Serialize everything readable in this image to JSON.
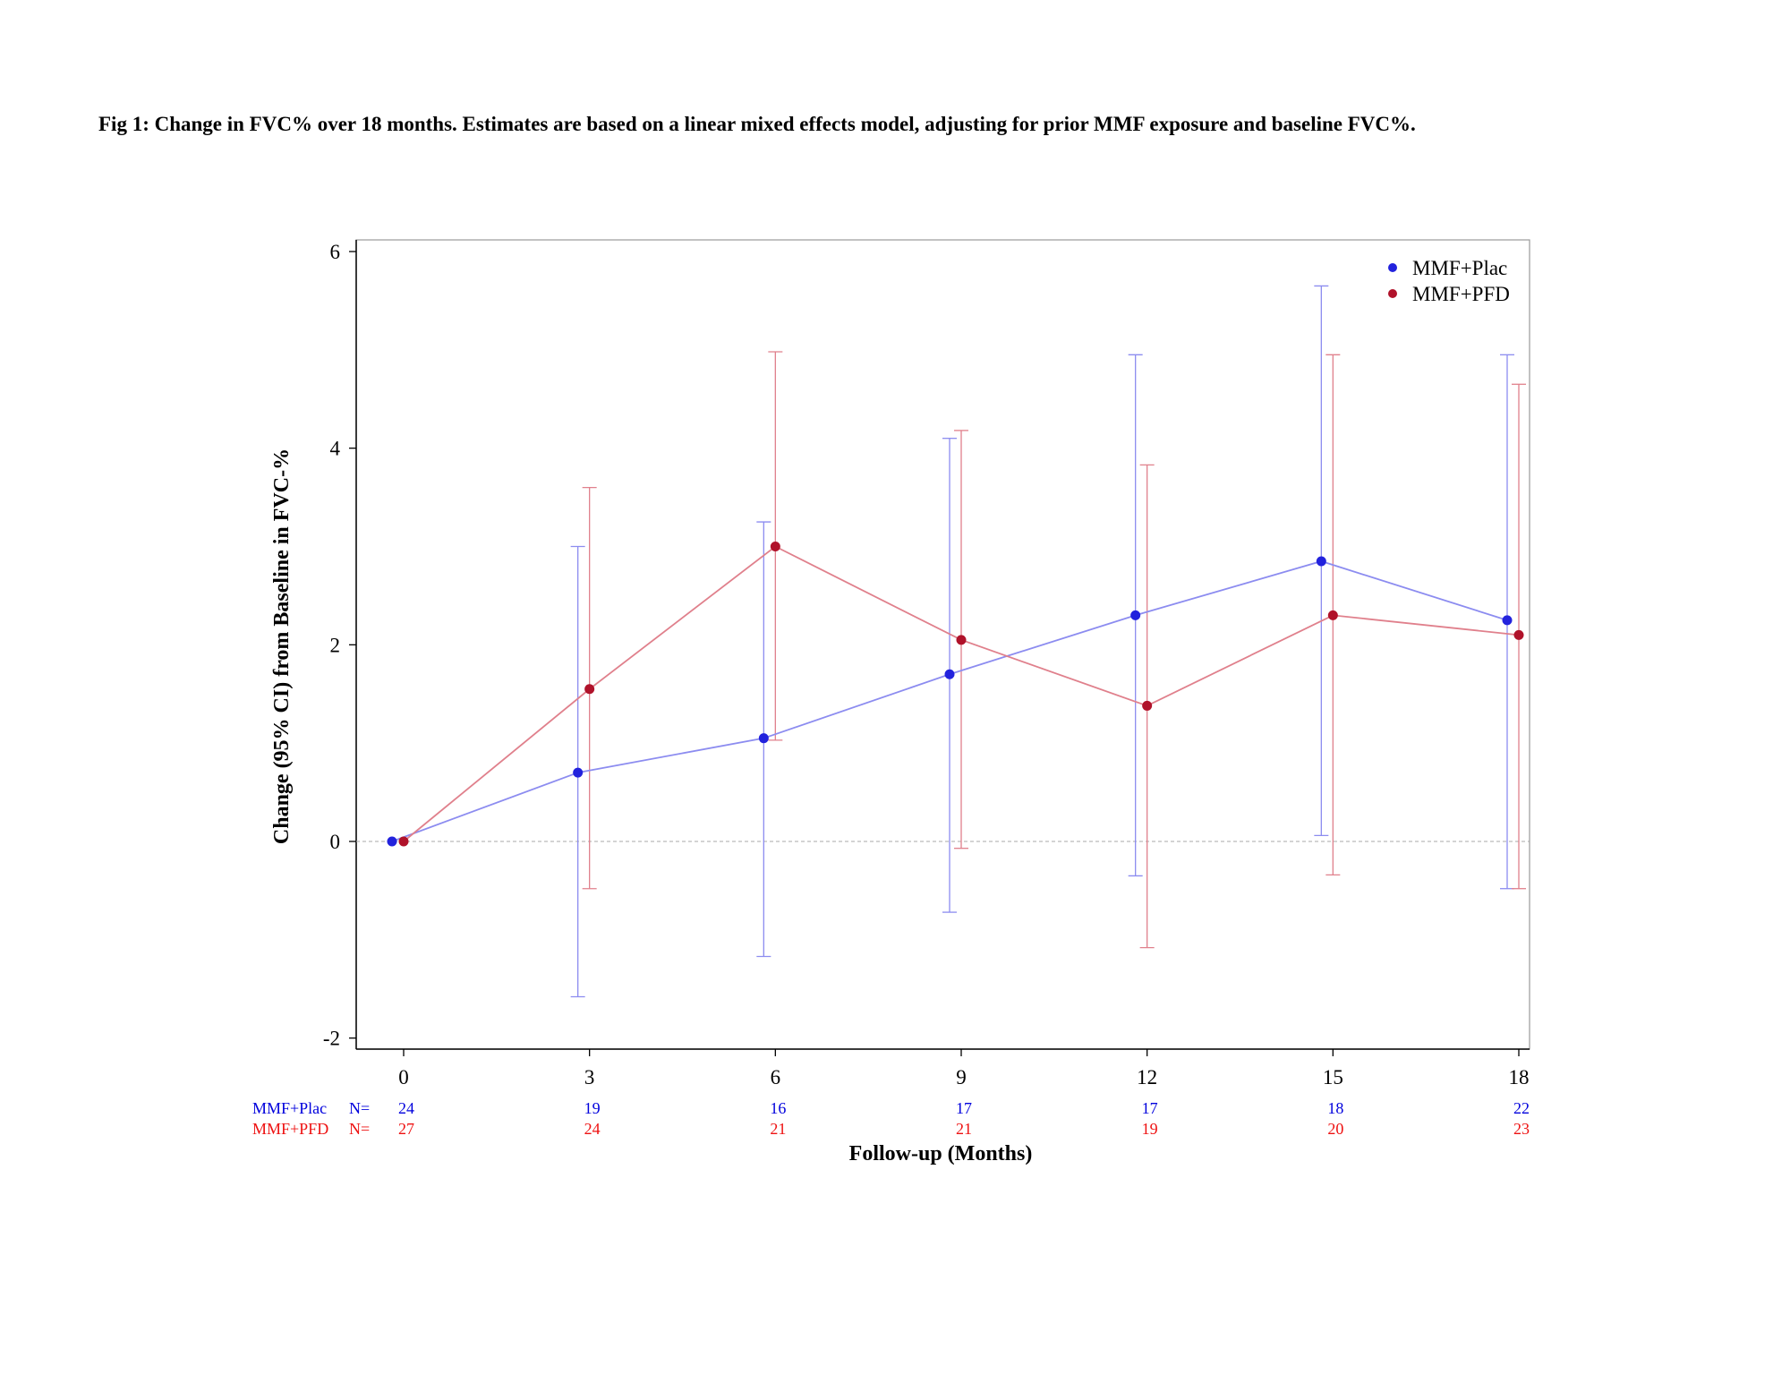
{
  "caption": "Fig 1: Change in FVC% over 18 months. Estimates are based on a linear mixed effects model, adjusting for prior MMF exposure and baseline FVC%.",
  "chart_data": {
    "type": "line",
    "xlabel": "Follow-up (Months)",
    "ylabel": "Change (95% CI) from Baseline in FVC-%",
    "xlim": [
      -1,
      18.5
    ],
    "ylim": [
      -2.1,
      6.1
    ],
    "xticks": [
      0,
      3,
      6,
      9,
      12,
      15,
      18
    ],
    "yticks": [
      -2,
      0,
      2,
      4,
      6
    ],
    "reference_line_y": 0,
    "legend_position": "top-right",
    "n_at_risk_label": "N=",
    "series": [
      {
        "name": "MMF+Plac",
        "color": "#2222dd",
        "line_color": "#8c8cf0",
        "x": [
          0,
          3,
          6,
          9,
          12,
          15,
          18
        ],
        "y": [
          0,
          0.7,
          1.05,
          1.7,
          2.3,
          2.85,
          2.25
        ],
        "ci_lower": [
          0,
          -1.58,
          -1.17,
          -0.72,
          -0.35,
          0.06,
          -0.48
        ],
        "ci_upper": [
          0,
          3.0,
          3.25,
          4.1,
          4.95,
          5.65,
          4.95
        ],
        "n": [
          "24",
          "19",
          "16",
          "17",
          "17",
          "18",
          "22"
        ]
      },
      {
        "name": "MMF+PFD",
        "color": "#b0122a",
        "line_color": "#e0808c",
        "x": [
          0,
          3,
          6,
          9,
          12,
          15,
          18
        ],
        "y": [
          0,
          1.55,
          3.0,
          2.05,
          1.38,
          2.3,
          2.1
        ],
        "ci_lower": [
          0,
          -0.48,
          1.03,
          -0.07,
          -1.08,
          -0.34,
          -0.48
        ],
        "ci_upper": [
          0,
          3.6,
          4.98,
          4.18,
          3.83,
          4.95,
          4.65
        ],
        "n": [
          "27",
          "24",
          "21",
          "21",
          "19",
          "20",
          "23"
        ]
      }
    ]
  }
}
